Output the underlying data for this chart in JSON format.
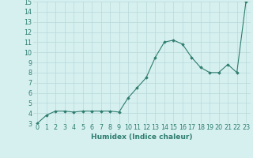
{
  "x": [
    0,
    1,
    2,
    3,
    4,
    5,
    6,
    7,
    8,
    9,
    10,
    11,
    12,
    13,
    14,
    15,
    16,
    17,
    18,
    19,
    20,
    21,
    22,
    23
  ],
  "y": [
    3,
    3.8,
    4.2,
    4.2,
    4.1,
    4.2,
    4.2,
    4.2,
    4.2,
    4.1,
    5.5,
    6.5,
    7.5,
    9.5,
    11.0,
    11.2,
    10.8,
    9.5,
    8.5,
    8.0,
    8.0,
    8.8,
    8.0,
    15.0
  ],
  "xlabel": "Humidex (Indice chaleur)",
  "xlim": [
    -0.5,
    23.5
  ],
  "ylim": [
    3,
    15
  ],
  "yticks": [
    3,
    4,
    5,
    6,
    7,
    8,
    9,
    10,
    11,
    12,
    13,
    14,
    15
  ],
  "xticks": [
    0,
    1,
    2,
    3,
    4,
    5,
    6,
    7,
    8,
    9,
    10,
    11,
    12,
    13,
    14,
    15,
    16,
    17,
    18,
    19,
    20,
    21,
    22,
    23
  ],
  "line_color": "#2e7d6e",
  "marker_color": "#2e7d6e",
  "bg_color": "#d6f0f0",
  "grid_color": "#b8d8d8",
  "font_color": "#2e7d6e",
  "xlabel_fontsize": 6.5,
  "tick_fontsize": 5.8
}
